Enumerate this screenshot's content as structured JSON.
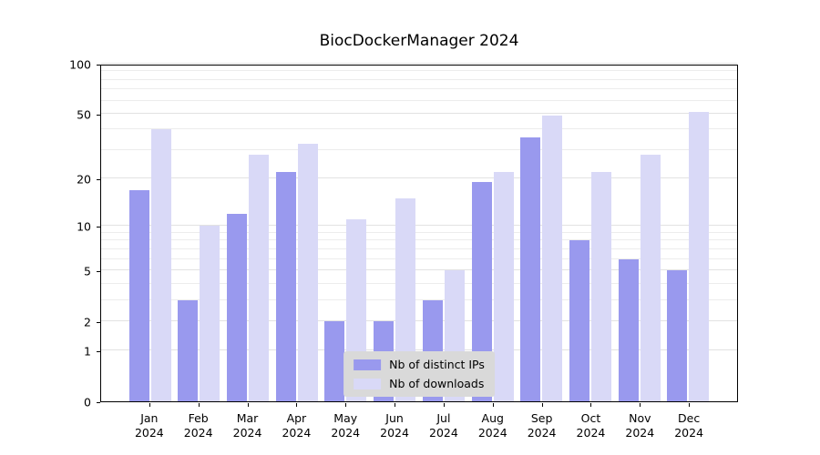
{
  "title": "BiocDockerManager 2024",
  "chart_data": {
    "type": "bar",
    "title": "BiocDockerManager 2024",
    "x_axis": {
      "months": [
        "Jan",
        "Feb",
        "Mar",
        "Apr",
        "May",
        "Jun",
        "Jul",
        "Aug",
        "Sep",
        "Oct",
        "Nov",
        "Dec"
      ],
      "year": "2024"
    },
    "y_axis": {
      "ticks": [
        0,
        1,
        2,
        5,
        10,
        20,
        50,
        100
      ],
      "minor_gridlines": [
        3,
        4,
        6,
        7,
        8,
        9,
        30,
        40,
        60,
        70,
        80,
        90
      ],
      "scale": "log1p",
      "range": [
        0,
        100
      ]
    },
    "series": [
      {
        "name": "Nb of distinct IPs",
        "color": "#9999ee",
        "values": [
          17,
          3,
          12,
          22,
          2,
          2,
          3,
          19,
          36,
          8,
          6,
          5
        ]
      },
      {
        "name": "Nb of downloads",
        "color": "#d9d9f7",
        "values": [
          40,
          10,
          28,
          33,
          11,
          15,
          5,
          22,
          49,
          22,
          28,
          51
        ]
      }
    ],
    "legend": {
      "position": "lower center",
      "background": "#d9d9d9"
    },
    "grid": true,
    "plot_background": "#ffffff"
  }
}
